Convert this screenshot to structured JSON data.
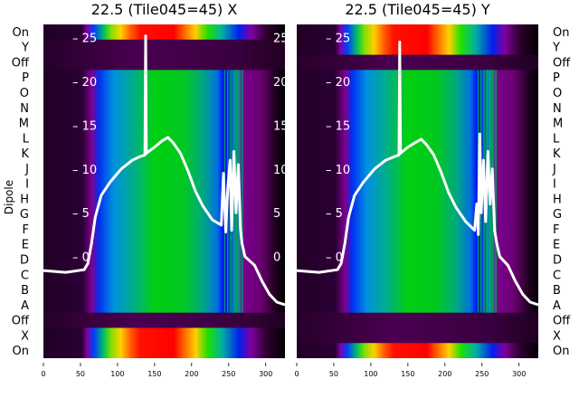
{
  "chart_data": [
    {
      "type": "heatmap",
      "title": "22.5 (Tile045=45) X",
      "ylabel": "Dipole",
      "row_labels": [
        "On",
        "Y",
        "Off",
        "P",
        "O",
        "N",
        "M",
        "L",
        "K",
        "J",
        "I",
        "H",
        "G",
        "F",
        "E",
        "D",
        "C",
        "B",
        "A",
        "Off",
        "X",
        "On"
      ],
      "xticks": [
        0,
        50,
        100,
        150,
        200,
        250,
        300
      ],
      "xlim": [
        0,
        326
      ],
      "inner_yticks": [
        0,
        5,
        10,
        15,
        20,
        25
      ],
      "inner_ylim": [
        -11.6,
        26.5
      ],
      "bright_rows": [
        0,
        20,
        21
      ],
      "line": [
        [
          0,
          -1.6
        ],
        [
          30,
          -1.8
        ],
        [
          55,
          -1.5
        ],
        [
          60,
          -0.8
        ],
        [
          65,
          1.5
        ],
        [
          70,
          4.5
        ],
        [
          78,
          7
        ],
        [
          90,
          8.5
        ],
        [
          105,
          10
        ],
        [
          120,
          11
        ],
        [
          130,
          11.4
        ],
        [
          137,
          11.6
        ],
        [
          138,
          25.2
        ],
        [
          139,
          11.8
        ],
        [
          150,
          12.5
        ],
        [
          160,
          13.2
        ],
        [
          168,
          13.6
        ],
        [
          175,
          13
        ],
        [
          185,
          11.8
        ],
        [
          195,
          9.8
        ],
        [
          205,
          7.5
        ],
        [
          215,
          5.8
        ],
        [
          228,
          4.2
        ],
        [
          240,
          3.6
        ],
        [
          243,
          9.5
        ],
        [
          246,
          2.8
        ],
        [
          249,
          8
        ],
        [
          252,
          11
        ],
        [
          254,
          3
        ],
        [
          257,
          12
        ],
        [
          260,
          5
        ],
        [
          263,
          10.5
        ],
        [
          266,
          3
        ],
        [
          268,
          1.5
        ],
        [
          272,
          0
        ],
        [
          285,
          -1
        ],
        [
          295,
          -2.8
        ],
        [
          305,
          -4.3
        ],
        [
          315,
          -5.2
        ],
        [
          326,
          -5.5
        ]
      ]
    },
    {
      "type": "heatmap",
      "title": "22.5 (Tile045=45) Y",
      "ylabel": "",
      "row_labels": [
        "On",
        "Y",
        "Off",
        "P",
        "O",
        "N",
        "M",
        "L",
        "K",
        "J",
        "I",
        "H",
        "G",
        "F",
        "E",
        "D",
        "C",
        "B",
        "A",
        "Off",
        "X",
        "On"
      ],
      "xticks": [
        0,
        50,
        100,
        150,
        200,
        250,
        300
      ],
      "xlim": [
        0,
        326
      ],
      "inner_yticks": [
        0,
        5,
        10,
        15,
        20,
        25
      ],
      "inner_ylim": [
        -11.6,
        26.5
      ],
      "bright_rows": [
        0,
        1,
        21
      ],
      "line": [
        [
          0,
          -1.6
        ],
        [
          30,
          -1.8
        ],
        [
          55,
          -1.5
        ],
        [
          60,
          -0.8
        ],
        [
          65,
          1.5
        ],
        [
          70,
          4.5
        ],
        [
          78,
          7
        ],
        [
          90,
          8.5
        ],
        [
          105,
          10
        ],
        [
          120,
          11
        ],
        [
          132,
          11.4
        ],
        [
          138,
          11.6
        ],
        [
          139,
          24.5
        ],
        [
          140,
          11.8
        ],
        [
          150,
          12.5
        ],
        [
          160,
          13
        ],
        [
          168,
          13.4
        ],
        [
          175,
          12.8
        ],
        [
          185,
          11.6
        ],
        [
          195,
          9.6
        ],
        [
          205,
          7.3
        ],
        [
          215,
          5.6
        ],
        [
          228,
          4
        ],
        [
          240,
          3
        ],
        [
          243,
          6
        ],
        [
          245,
          2.5
        ],
        [
          247,
          14
        ],
        [
          249,
          5
        ],
        [
          252,
          11
        ],
        [
          255,
          4
        ],
        [
          258,
          12
        ],
        [
          261,
          6
        ],
        [
          264,
          10
        ],
        [
          267,
          3
        ],
        [
          270,
          1.5
        ],
        [
          274,
          0
        ],
        [
          285,
          -1
        ],
        [
          295,
          -2.8
        ],
        [
          305,
          -4.3
        ],
        [
          315,
          -5.2
        ],
        [
          326,
          -5.5
        ]
      ]
    }
  ]
}
